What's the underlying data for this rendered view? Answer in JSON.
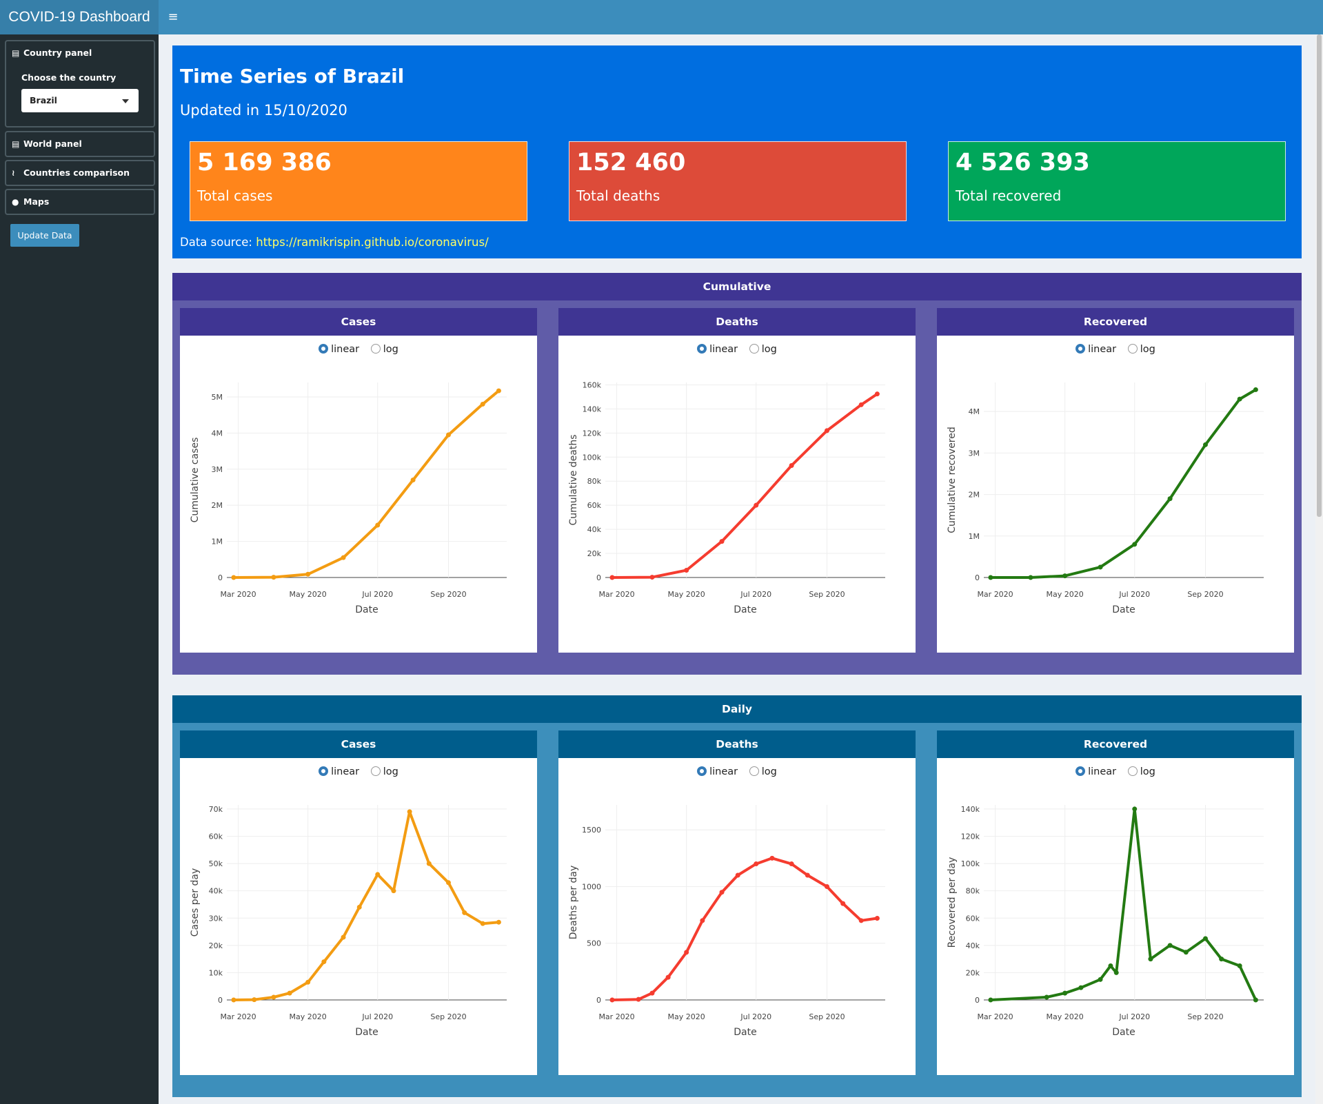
{
  "header": {
    "title": "COVID-19 Dashboard",
    "toggle_icon": "≡"
  },
  "sidebar": {
    "country_panel": "Country panel",
    "choose_label": "Choose the country",
    "country_value": "Brazil",
    "world_panel": "World panel",
    "countries_comparison": "Countries comparison",
    "maps": "Maps",
    "update_button": "Update Data"
  },
  "summary": {
    "title": "Time Series of Brazil",
    "updated": "Updated in 15/10/2020",
    "boxes": [
      {
        "value": "5 169 386",
        "label": "Total cases",
        "color": "#ff851b"
      },
      {
        "value": "152 460",
        "label": "Total deaths",
        "color": "#dd4b39"
      },
      {
        "value": "4 526 393",
        "label": "Total recovered",
        "color": "#00a65a"
      }
    ],
    "source_label": "Data source:",
    "source_link": "https://ramikrispin.github.io/coronavirus/"
  },
  "sections": [
    {
      "title": "Cumulative",
      "head_color": "#3f3593",
      "body_color": "#605ca8"
    },
    {
      "title": "Daily",
      "head_color": "#005d8c",
      "body_color": "#3d8fbb"
    }
  ],
  "card_titles": [
    "Cases",
    "Deaths",
    "Recovered"
  ],
  "radio": {
    "linear": "linear",
    "log": "log",
    "selected": "linear"
  },
  "colors": {
    "cases": "#f39c12",
    "deaths": "#f53c2f",
    "recovered": "#237a12"
  },
  "chart_data": [
    {
      "type": "line",
      "xlabel": "Date",
      "ylabel": "Cumulative cases",
      "x_ticks": [
        "Mar 2020",
        "May 2020",
        "Jul 2020",
        "Sep 2020"
      ],
      "y_ticks": [
        "0",
        "1M",
        "2M",
        "3M",
        "4M",
        "5M"
      ],
      "ylim": [
        0,
        5400000
      ],
      "series": [
        {
          "x": [
            "2020-02-26",
            "2020-04-01",
            "2020-05-01",
            "2020-06-01",
            "2020-07-01",
            "2020-08-01",
            "2020-09-01",
            "2020-10-01",
            "2020-10-15"
          ],
          "values": [
            0,
            7000,
            90000,
            550000,
            1450000,
            2700000,
            3950000,
            4800000,
            5169386
          ]
        }
      ]
    },
    {
      "type": "line",
      "xlabel": "Date",
      "ylabel": "Cumulative deaths",
      "x_ticks": [
        "Mar 2020",
        "May 2020",
        "Jul 2020",
        "Sep 2020"
      ],
      "y_ticks": [
        "0",
        "20k",
        "40k",
        "60k",
        "80k",
        "100k",
        "120k",
        "140k",
        "160k"
      ],
      "ylim": [
        0,
        162000
      ],
      "series": [
        {
          "x": [
            "2020-02-26",
            "2020-04-01",
            "2020-05-01",
            "2020-06-01",
            "2020-07-01",
            "2020-08-01",
            "2020-09-01",
            "2020-10-01",
            "2020-10-15"
          ],
          "values": [
            0,
            250,
            6000,
            30000,
            60000,
            93000,
            122000,
            143500,
            152460
          ]
        }
      ]
    },
    {
      "type": "line",
      "xlabel": "Date",
      "ylabel": "Cumulative recovered",
      "x_ticks": [
        "Mar 2020",
        "May 2020",
        "Jul 2020",
        "Sep 2020"
      ],
      "y_ticks": [
        "0",
        "1M",
        "2M",
        "3M",
        "4M"
      ],
      "ylim": [
        0,
        4700000
      ],
      "series": [
        {
          "x": [
            "2020-02-26",
            "2020-04-01",
            "2020-05-01",
            "2020-06-01",
            "2020-07-01",
            "2020-08-01",
            "2020-09-01",
            "2020-10-01",
            "2020-10-15"
          ],
          "values": [
            0,
            120,
            40000,
            250000,
            800000,
            1900000,
            3200000,
            4300000,
            4526393
          ]
        }
      ]
    },
    {
      "type": "line",
      "xlabel": "Date",
      "ylabel": "Cases per day",
      "x_ticks": [
        "Mar 2020",
        "May 2020",
        "Jul 2020",
        "Sep 2020"
      ],
      "y_ticks": [
        "0",
        "10k",
        "20k",
        "30k",
        "40k",
        "50k",
        "60k",
        "70k"
      ],
      "ylim": [
        0,
        71500
      ],
      "series": [
        {
          "x": [
            "2020-02-26",
            "2020-03-15",
            "2020-04-01",
            "2020-04-15",
            "2020-05-01",
            "2020-05-15",
            "2020-06-01",
            "2020-06-15",
            "2020-07-01",
            "2020-07-15",
            "2020-07-29",
            "2020-08-15",
            "2020-09-01",
            "2020-09-15",
            "2020-10-01",
            "2020-10-15"
          ],
          "values": [
            0,
            100,
            1000,
            2500,
            6500,
            14000,
            23000,
            34000,
            46000,
            40000,
            69000,
            50000,
            43000,
            32000,
            28000,
            28500
          ]
        }
      ]
    },
    {
      "type": "line",
      "xlabel": "Date",
      "ylabel": "Deaths per day",
      "x_ticks": [
        "Mar 2020",
        "May 2020",
        "Jul 2020",
        "Sep 2020"
      ],
      "y_ticks": [
        "0",
        "500",
        "1000",
        "1500"
      ],
      "ylim": [
        0,
        1720
      ],
      "series": [
        {
          "x": [
            "2020-02-26",
            "2020-03-20",
            "2020-04-01",
            "2020-04-15",
            "2020-05-01",
            "2020-05-15",
            "2020-06-01",
            "2020-06-15",
            "2020-07-01",
            "2020-07-15",
            "2020-08-01",
            "2020-08-15",
            "2020-09-01",
            "2020-09-15",
            "2020-10-01",
            "2020-10-15"
          ],
          "values": [
            0,
            5,
            60,
            200,
            420,
            700,
            950,
            1100,
            1200,
            1250,
            1200,
            1100,
            1000,
            850,
            700,
            720
          ]
        }
      ]
    },
    {
      "type": "line",
      "xlabel": "Date",
      "ylabel": "Recovered per day",
      "x_ticks": [
        "Mar 2020",
        "May 2020",
        "Jul 2020",
        "Sep 2020"
      ],
      "y_ticks": [
        "0",
        "20k",
        "40k",
        "60k",
        "80k",
        "100k",
        "120k",
        "140k"
      ],
      "ylim": [
        0,
        143000
      ],
      "series": [
        {
          "x": [
            "2020-02-26",
            "2020-04-15",
            "2020-05-01",
            "2020-05-15",
            "2020-06-01",
            "2020-06-10",
            "2020-06-15",
            "2020-07-01",
            "2020-07-15",
            "2020-08-01",
            "2020-08-15",
            "2020-09-01",
            "2020-09-15",
            "2020-10-01",
            "2020-10-15"
          ],
          "values": [
            0,
            2000,
            5000,
            9000,
            15000,
            25000,
            20000,
            140000,
            30000,
            40000,
            35000,
            45000,
            30000,
            25000,
            0
          ]
        }
      ]
    }
  ]
}
